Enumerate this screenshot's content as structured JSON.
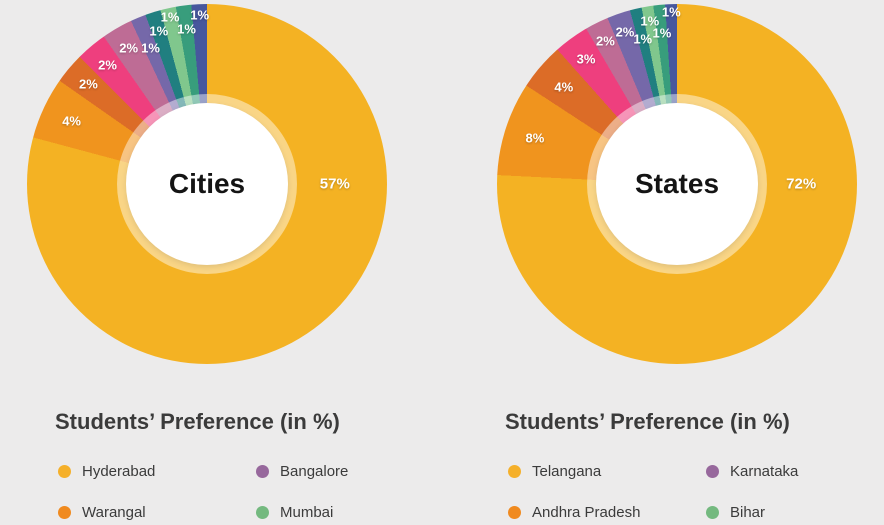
{
  "background_color": "#ECEBEB",
  "chart_data": [
    {
      "type": "pie",
      "title": "Cities",
      "unit": "%",
      "direction": "clockwise",
      "start_angle_deg": 0,
      "donut_hole_frac": 0.45,
      "inner_highlight_ring_frac": 0.5,
      "slices": [
        {
          "display": "57%",
          "value": 57,
          "color": "#F4B223",
          "big": true,
          "label_angle": 90,
          "label_r": 0.71
        },
        {
          "display": "4%",
          "value": 4,
          "color": "#F0941E",
          "label_r": 0.83
        },
        {
          "display": "2%",
          "value": 2,
          "color": "#DC6C27",
          "label_r": 0.86
        },
        {
          "display": "2%",
          "value": 2,
          "color": "#EE3F7E",
          "label_r": 0.86
        },
        {
          "display": "2%",
          "value": 2,
          "color": "#BE6C95",
          "label_r": 0.87
        },
        {
          "display": "1%",
          "value": 1,
          "color": "#7568A9",
          "label_r": 0.82
        },
        {
          "display": "1%",
          "value": 1,
          "color": "#207F80",
          "label_r": 0.89
        },
        {
          "display": "1%",
          "value": 1,
          "color": "#80C78D",
          "label_r": 0.95
        },
        {
          "display": "1%",
          "value": 1,
          "color": "#389D7C",
          "label_r": 0.87
        },
        {
          "display": "1%",
          "value": 1,
          "color": "#47579D",
          "label_r": 0.94
        }
      ]
    },
    {
      "type": "pie",
      "title": "States",
      "unit": "%",
      "direction": "clockwise",
      "start_angle_deg": 0,
      "donut_hole_frac": 0.45,
      "inner_highlight_ring_frac": 0.5,
      "slices": [
        {
          "display": "72%",
          "value": 72,
          "color": "#F4B223",
          "big": true,
          "label_angle": 90,
          "label_r": 0.69
        },
        {
          "display": "8%",
          "value": 8,
          "color": "#F0941E",
          "label_r": 0.83
        },
        {
          "display": "4%",
          "value": 4,
          "color": "#DC6C27",
          "label_r": 0.83
        },
        {
          "display": "3%",
          "value": 3,
          "color": "#EE3F7E",
          "label_r": 0.86
        },
        {
          "display": "2%",
          "value": 2,
          "color": "#BE6C95",
          "label_r": 0.89
        },
        {
          "display": "2%",
          "value": 2,
          "color": "#7568A9",
          "label_r": 0.89
        },
        {
          "display": "1%",
          "value": 1,
          "color": "#207F80",
          "label_r": 0.83
        },
        {
          "display": "1%",
          "value": 1,
          "color": "#80C78D",
          "label_r": 0.92
        },
        {
          "display": "1%",
          "value": 1,
          "color": "#389D7C",
          "label_r": 0.845
        },
        {
          "display": "1%",
          "value": 1,
          "color": "#47579D",
          "label_r": 0.955
        }
      ]
    }
  ],
  "panels": [
    {
      "section_title": "Students’ Preference (in %)",
      "legend": [
        {
          "label": "Hyderabad",
          "color": "#F5B02A"
        },
        {
          "label": "Bangalore",
          "color": "#97689C"
        },
        {
          "label": "Warangal",
          "color": "#F08A1F"
        },
        {
          "label": "Mumbai",
          "color": "#74B97F"
        }
      ]
    },
    {
      "section_title": "Students’ Preference (in %)",
      "legend": [
        {
          "label": "Telangana",
          "color": "#F5B02A"
        },
        {
          "label": "Karnataka",
          "color": "#97689C"
        },
        {
          "label": "Andhra Pradesh",
          "color": "#F08A1F"
        },
        {
          "label": "Bihar",
          "color": "#74B97F"
        }
      ]
    }
  ]
}
